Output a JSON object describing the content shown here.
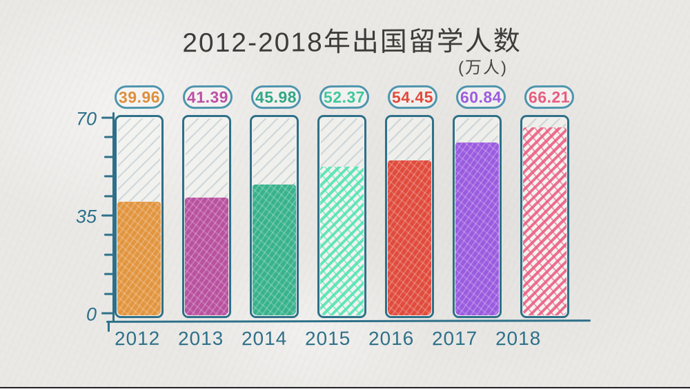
{
  "page": {
    "background_color": "#e9e8e5",
    "bottom_edge_color": "#26262a"
  },
  "chart_data": {
    "type": "bar",
    "title": "2012-2018年出国留学人数",
    "unit_label": "(万人)",
    "categories": [
      "2012",
      "2013",
      "2014",
      "2015",
      "2016",
      "2017",
      "2018"
    ],
    "values": [
      39.96,
      41.39,
      45.98,
      52.37,
      54.45,
      60.84,
      66.21
    ],
    "value_labels": [
      "39.96",
      "41.39",
      "45.98",
      "52.37",
      "54.45",
      "60.84",
      "66.21"
    ],
    "bar_colors": [
      "#e2953f",
      "#b8519f",
      "#38b28c",
      "#4fe4b2",
      "#e04b3c",
      "#9a5bdf",
      "#ea5c80"
    ],
    "value_label_colors": [
      "#dd8e3c",
      "#bc4fa4",
      "#2ea886",
      "#3ec79d",
      "#e04b3c",
      "#9c5ce0",
      "#e85c80"
    ],
    "fill_styles": [
      "dense",
      "dense",
      "dense",
      "sparse",
      "dense",
      "dense",
      "sparse"
    ],
    "ylim": [
      0,
      70
    ],
    "yticks_major": [
      0,
      35,
      70
    ],
    "ytick_minor_step": 7,
    "grid": "off",
    "legend": "none",
    "axis_color": "#2e7089",
    "badge_border_color": "#4e95ae",
    "tick_label_color": "#2e7089",
    "title_color": "#3d3c3a",
    "unit_label_color": "#464543"
  }
}
